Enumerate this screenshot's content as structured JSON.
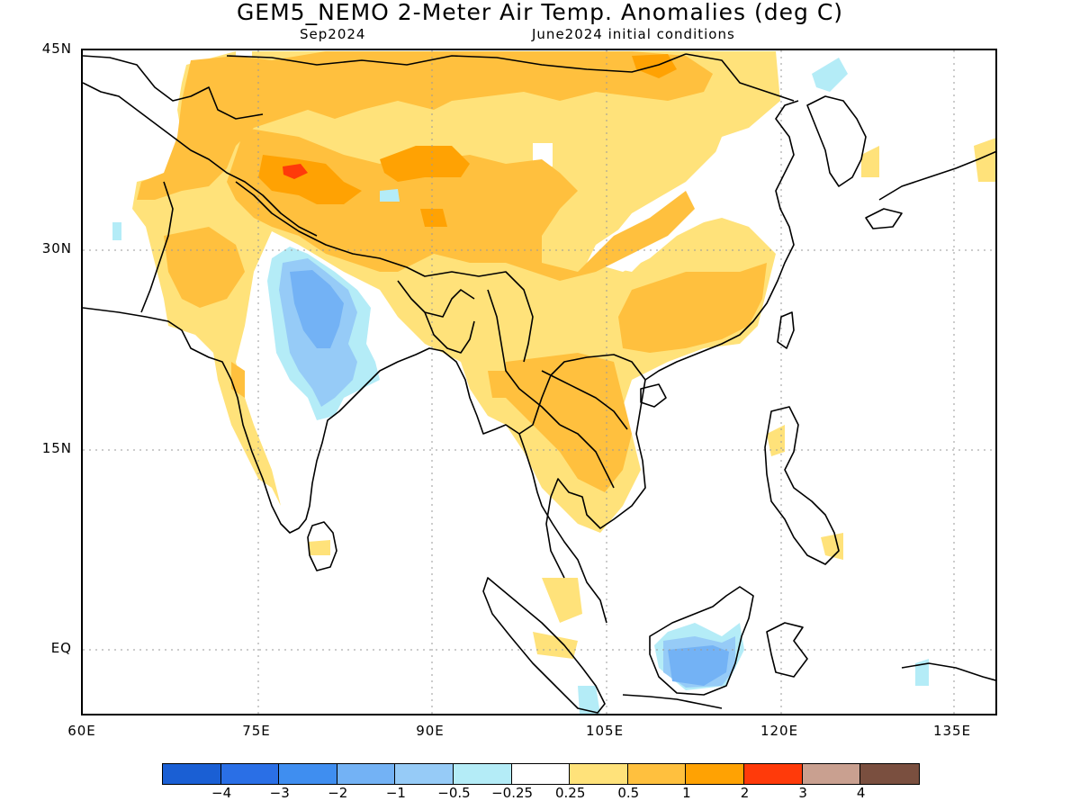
{
  "title": "GEM5_NEMO 2-Meter Air Temp. Anomalies (deg C)",
  "subtitle_left": "Sep2024",
  "subtitle_right": "June2024 initial conditions",
  "lat_labels": [
    "45N",
    "30N",
    "15N",
    "EQ"
  ],
  "lon_labels": [
    "60E",
    "75E",
    "90E",
    "105E",
    "120E",
    "135E"
  ],
  "colors": {
    "neg4": "#1a5fd4",
    "neg3": "#2a6fe6",
    "neg2": "#3f8ef0",
    "neg1": "#73b2f5",
    "neg05": "#96cbf7",
    "neg025": "#b4ecf7",
    "neutral": "#ffffff",
    "pos025": "#ffe27a",
    "pos05": "#ffc03e",
    "pos1": "#ffa203",
    "pos2": "#ff3a0a",
    "pos3": "#c9a090",
    "pos4": "#7a4f3f"
  },
  "colorbar": {
    "bins": [
      "neg4",
      "neg3",
      "neg2",
      "neg1",
      "neg05",
      "neg025",
      "neutral",
      "pos025",
      "pos05",
      "pos1",
      "pos2",
      "pos3",
      "pos4"
    ],
    "labels": [
      "−4",
      "−3",
      "−2",
      "−1",
      "−0.5",
      "−0.25",
      "0.25",
      "0.5",
      "1",
      "2",
      "3",
      "4"
    ]
  }
}
